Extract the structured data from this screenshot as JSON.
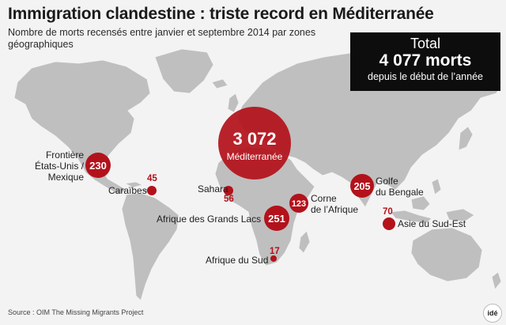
{
  "title": "Immigration clandestine : triste record en Méditerranée",
  "subtitle": "Nombre de morts recensés entre janvier et septembre 2014 par zones géographiques",
  "total": {
    "label": "Total",
    "value": "4 077 morts",
    "caption": "depuis le début de l’année"
  },
  "zones": {
    "mediterranee": {
      "value": "3 072",
      "name": "Méditerranée"
    },
    "frontiere": {
      "value": "230",
      "name_l1": "Frontière",
      "name_l2": "États-Unis /",
      "name_l3": "Mexique"
    },
    "caraibes": {
      "value": "45",
      "name": "Caraïbes"
    },
    "sahara": {
      "value": "56",
      "name": "Sahara"
    },
    "corne": {
      "value": "123",
      "name_l1": "Corne",
      "name_l2": "de l’Afrique"
    },
    "grands_lacs": {
      "value": "251",
      "name": "Afrique des Grands Lacs"
    },
    "sud": {
      "value": "17",
      "name": "Afrique du Sud"
    },
    "bengale": {
      "value": "205",
      "name_l1": "Golfe",
      "name_l2": "du Bengale"
    },
    "sud_est": {
      "value": "70",
      "name": "Asie du Sud-Est"
    }
  },
  "source": "Source : OIM The Missing Migrants Project",
  "logo": "idé",
  "colors": {
    "bubble": "#b3121b",
    "land": "#bfbfbf",
    "background": "#f3f3f3",
    "total_box": "#0d0d0d"
  },
  "icons": [
    "world-map",
    "bubble-marker"
  ]
}
